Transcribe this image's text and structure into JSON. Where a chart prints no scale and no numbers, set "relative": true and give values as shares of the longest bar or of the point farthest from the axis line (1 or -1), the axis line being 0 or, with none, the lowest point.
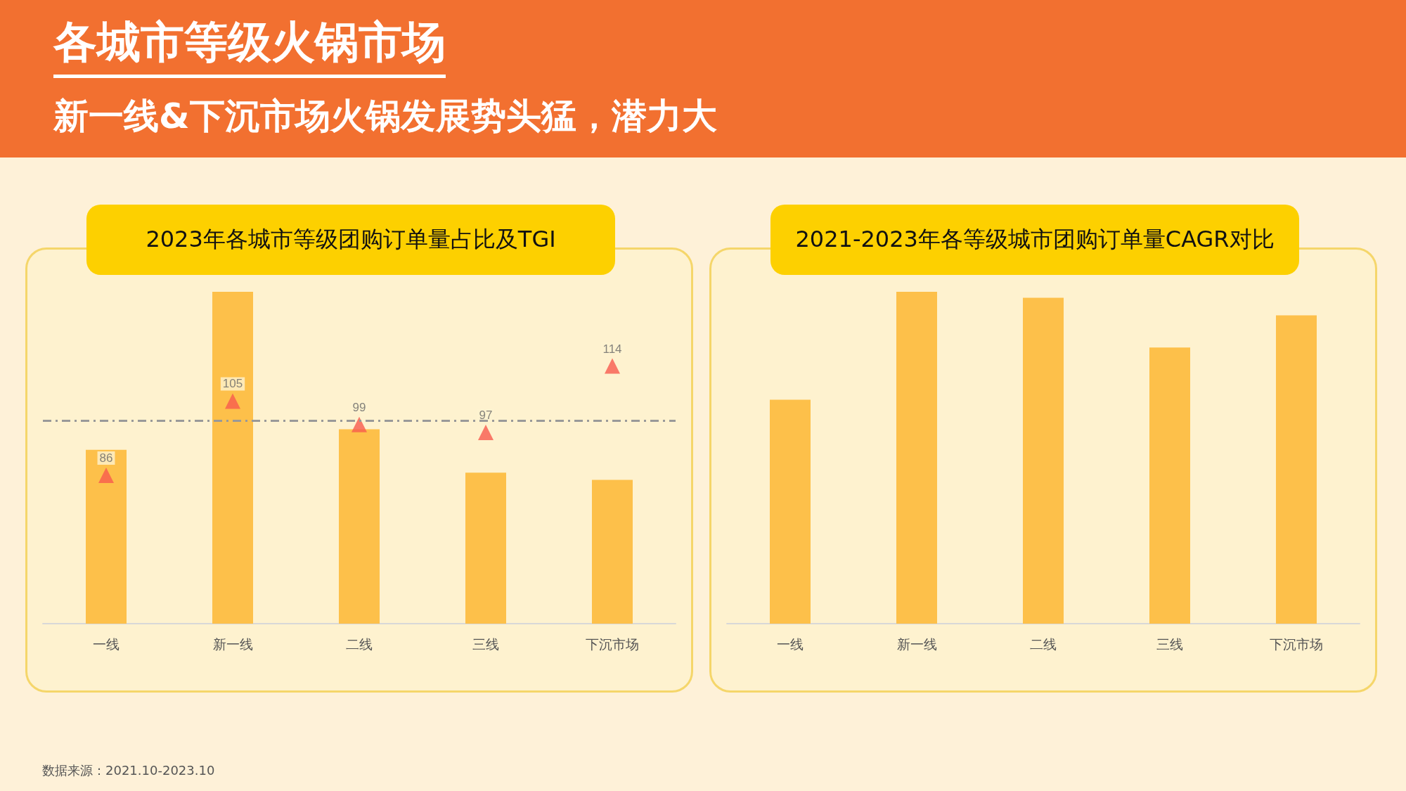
{
  "chart_data": [
    {
      "type": "other",
      "title": "各城市等级火锅市场",
      "subtitle": "新一线&下沉市场火锅发展势头猛，潜力大",
      "annotations": [
        "数据来源：2021.10-2023.10"
      ]
    },
    {
      "type": "bar",
      "title": "2023年各城市等级团购订单量占比及TGI",
      "categories": [
        "一线",
        "新一线",
        "二线",
        "三线",
        "下沉市场"
      ],
      "relative": true,
      "series": [
        {
          "color": "#fdc04a",
          "values": [
            0.524,
            1,
            0.586,
            0.455,
            0.433
          ]
        }
      ]
    },
    {
      "type": "scatter",
      "categories": [
        null,
        null,
        null,
        null,
        null
      ],
      "tick_labels": false,
      "marker": "triangle",
      "series": [
        {
          "color": "#f85a4e",
          "values": [
            86,
            105,
            99,
            97,
            114
          ],
          "value_labels": [
            "86",
            "105",
            "99",
            "97",
            "114"
          ]
        }
      ],
      "ref_lines": [
        {
          "axis": "y",
          "value": 100,
          "color": "#999999",
          "line_style": "dashed"
        }
      ]
    },
    {
      "type": "bar",
      "title": "2021-2023年各等级城市团购订单量CAGR对比",
      "categories": [
        "一线",
        "新一线",
        "二线",
        "三线",
        "下沉市场"
      ],
      "relative": true,
      "series": [
        {
          "color": "#fdc04a",
          "values": [
            0.675,
            1,
            0.982,
            0.832,
            0.929
          ]
        }
      ]
    }
  ]
}
